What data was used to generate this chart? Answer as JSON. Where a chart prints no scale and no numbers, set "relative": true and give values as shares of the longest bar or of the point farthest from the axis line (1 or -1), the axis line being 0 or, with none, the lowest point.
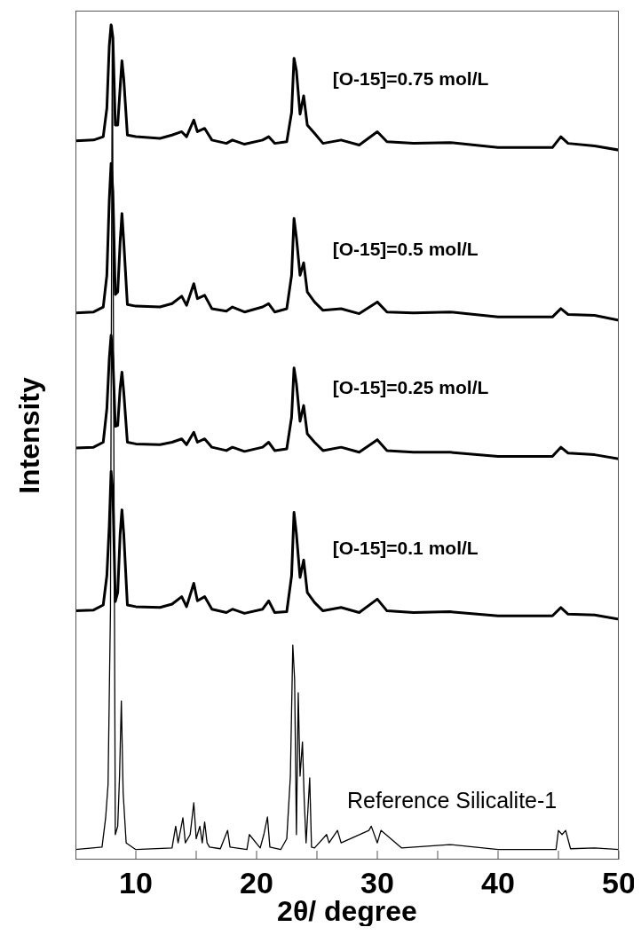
{
  "chart_data": {
    "type": "line",
    "relative": true,
    "xlabel": "2θ/ degree",
    "ylabel": "Intensity",
    "xlim": [
      5,
      50
    ],
    "xticks": [
      10,
      {
        "value": 15,
        "label": null
      },
      20,
      {
        "value": 25,
        "label": null
      },
      30,
      {
        "value": 35,
        "label": null
      },
      40,
      {
        "value": 45,
        "label": null
      },
      50
    ],
    "marker": "none",
    "line_style": "solid",
    "series": [
      {
        "name": "[O-15]=0.75 mol/L",
        "color": "#000000",
        "x": [
          5,
          6.5,
          7.3,
          7.6,
          7.8,
          7.95,
          8.1,
          8.3,
          8.5,
          8.7,
          8.85,
          9.0,
          9.3,
          10,
          12,
          13,
          13.8,
          14.2,
          14.8,
          15.1,
          15.7,
          16.3,
          17.5,
          18,
          19,
          20.5,
          21,
          21.5,
          22.5,
          22.9,
          23.1,
          23.3,
          23.6,
          23.9,
          24.2,
          24.8,
          25.5,
          27,
          28.5,
          30,
          30.8,
          33,
          36,
          40,
          44.5,
          45.2,
          45.8,
          48,
          50
        ],
        "values": [
          0.861,
          0.862,
          0.866,
          0.9,
          0.975,
          1.0,
          0.985,
          0.88,
          0.88,
          0.925,
          0.957,
          0.935,
          0.868,
          0.866,
          0.864,
          0.868,
          0.872,
          0.866,
          0.886,
          0.872,
          0.876,
          0.862,
          0.858,
          0.862,
          0.857,
          0.862,
          0.866,
          0.858,
          0.86,
          0.895,
          0.96,
          0.945,
          0.893,
          0.915,
          0.88,
          0.87,
          0.858,
          0.862,
          0.856,
          0.872,
          0.86,
          0.858,
          0.859,
          0.853,
          0.853,
          0.866,
          0.858,
          0.855,
          0.85
        ]
      },
      {
        "name": "[O-15]=0.5 mol/L",
        "color": "#000000",
        "x": [
          5,
          6.5,
          7.3,
          7.6,
          7.8,
          7.95,
          8.1,
          8.3,
          8.5,
          8.7,
          8.85,
          9.0,
          9.3,
          10,
          12,
          13,
          13.8,
          14.2,
          14.8,
          15.1,
          15.7,
          16.3,
          17.5,
          18,
          19,
          20.5,
          21,
          21.5,
          22.5,
          22.9,
          23.1,
          23.3,
          23.6,
          23.9,
          24.2,
          24.8,
          25.5,
          27,
          28.5,
          30,
          30.8,
          33,
          36,
          40,
          44.5,
          45.2,
          45.8,
          48,
          50
        ],
        "values": [
          0.655,
          0.656,
          0.662,
          0.7,
          0.79,
          0.834,
          0.8,
          0.677,
          0.68,
          0.74,
          0.774,
          0.74,
          0.665,
          0.663,
          0.662,
          0.666,
          0.675,
          0.664,
          0.69,
          0.672,
          0.676,
          0.66,
          0.657,
          0.662,
          0.656,
          0.662,
          0.666,
          0.656,
          0.66,
          0.7,
          0.768,
          0.745,
          0.7,
          0.715,
          0.68,
          0.668,
          0.658,
          0.66,
          0.654,
          0.668,
          0.656,
          0.655,
          0.656,
          0.65,
          0.65,
          0.66,
          0.653,
          0.652,
          0.646
        ]
      },
      {
        "name": "[O-15]=0.25 mol/L",
        "color": "#000000",
        "x": [
          5,
          6.5,
          7.3,
          7.6,
          7.8,
          7.95,
          8.1,
          8.3,
          8.5,
          8.7,
          8.85,
          9.0,
          9.3,
          10,
          12,
          13,
          13.8,
          14.2,
          14.8,
          15.1,
          15.7,
          16.3,
          17.5,
          18,
          19,
          20.5,
          21,
          21.5,
          22.5,
          22.9,
          23.1,
          23.3,
          23.6,
          23.9,
          24.2,
          24.8,
          25.5,
          27,
          28.5,
          30,
          30.8,
          33,
          36,
          40,
          44.5,
          45.2,
          45.8,
          48,
          50
        ],
        "values": [
          0.493,
          0.494,
          0.5,
          0.54,
          0.6,
          0.628,
          0.6,
          0.519,
          0.52,
          0.565,
          0.584,
          0.56,
          0.5,
          0.498,
          0.497,
          0.5,
          0.504,
          0.497,
          0.512,
          0.5,
          0.504,
          0.494,
          0.49,
          0.494,
          0.489,
          0.494,
          0.5,
          0.49,
          0.492,
          0.53,
          0.589,
          0.57,
          0.525,
          0.544,
          0.51,
          0.5,
          0.49,
          0.494,
          0.488,
          0.503,
          0.49,
          0.488,
          0.488,
          0.483,
          0.483,
          0.494,
          0.487,
          0.485,
          0.48
        ]
      },
      {
        "name": "[O-15]=0.1 mol/L",
        "color": "#000000",
        "x": [
          5,
          6.5,
          7.3,
          7.6,
          7.8,
          7.95,
          8.1,
          8.3,
          8.5,
          8.7,
          8.85,
          9.0,
          9.3,
          10,
          12,
          13,
          13.8,
          14.2,
          14.8,
          15.1,
          15.7,
          16.3,
          17.5,
          18,
          19,
          20.5,
          21,
          21.5,
          22.5,
          22.9,
          23.1,
          23.3,
          23.6,
          23.9,
          24.2,
          24.8,
          25.5,
          27,
          28.5,
          30,
          30.8,
          33,
          36,
          40,
          44.5,
          45.2,
          45.8,
          48,
          50
        ],
        "values": [
          0.298,
          0.299,
          0.305,
          0.34,
          0.4,
          0.465,
          0.44,
          0.309,
          0.32,
          0.39,
          0.419,
          0.39,
          0.305,
          0.303,
          0.302,
          0.306,
          0.315,
          0.303,
          0.331,
          0.31,
          0.315,
          0.3,
          0.296,
          0.3,
          0.295,
          0.3,
          0.31,
          0.296,
          0.297,
          0.34,
          0.416,
          0.39,
          0.338,
          0.359,
          0.32,
          0.308,
          0.298,
          0.302,
          0.296,
          0.312,
          0.298,
          0.296,
          0.297,
          0.292,
          0.292,
          0.302,
          0.294,
          0.293,
          0.288
        ]
      },
      {
        "name": "Reference Silicalite-1",
        "color": "#000000",
        "x": [
          5,
          7.2,
          7.5,
          7.7,
          7.9,
          8.05,
          8.3,
          8.5,
          8.65,
          8.8,
          8.95,
          9.2,
          10,
          13,
          13.3,
          13.5,
          13.9,
          14.1,
          14.5,
          14.8,
          15.0,
          15.3,
          15.5,
          15.7,
          15.9,
          16.1,
          17.0,
          17.6,
          17.8,
          19.2,
          19.4,
          20.3,
          20.6,
          20.9,
          21.1,
          22.0,
          22.5,
          22.8,
          23.0,
          23.15,
          23.3,
          23.45,
          23.6,
          23.8,
          23.95,
          24.1,
          24.4,
          24.55,
          24.8,
          25.8,
          26.0,
          26.7,
          27.0,
          29.3,
          29.5,
          30.0,
          30.3,
          32,
          36,
          40,
          44.8,
          45.0,
          45.3,
          45.6,
          46,
          48,
          50
        ],
        "values": [
          0.012,
          0.015,
          0.05,
          0.09,
          0.3,
          0.999,
          0.03,
          0.04,
          0.1,
          0.19,
          0.08,
          0.02,
          0.012,
          0.014,
          0.04,
          0.02,
          0.05,
          0.02,
          0.03,
          0.068,
          0.025,
          0.04,
          0.02,
          0.045,
          0.02,
          0.015,
          0.013,
          0.035,
          0.015,
          0.012,
          0.03,
          0.014,
          0.03,
          0.051,
          0.015,
          0.012,
          0.025,
          0.1,
          0.257,
          0.216,
          0.03,
          0.2,
          0.1,
          0.141,
          0.07,
          0.02,
          0.098,
          0.015,
          0.014,
          0.03,
          0.02,
          0.035,
          0.02,
          0.035,
          0.04,
          0.02,
          0.035,
          0.014,
          0.018,
          0.012,
          0.012,
          0.035,
          0.03,
          0.035,
          0.013,
          0.014,
          0.012
        ]
      }
    ]
  }
}
